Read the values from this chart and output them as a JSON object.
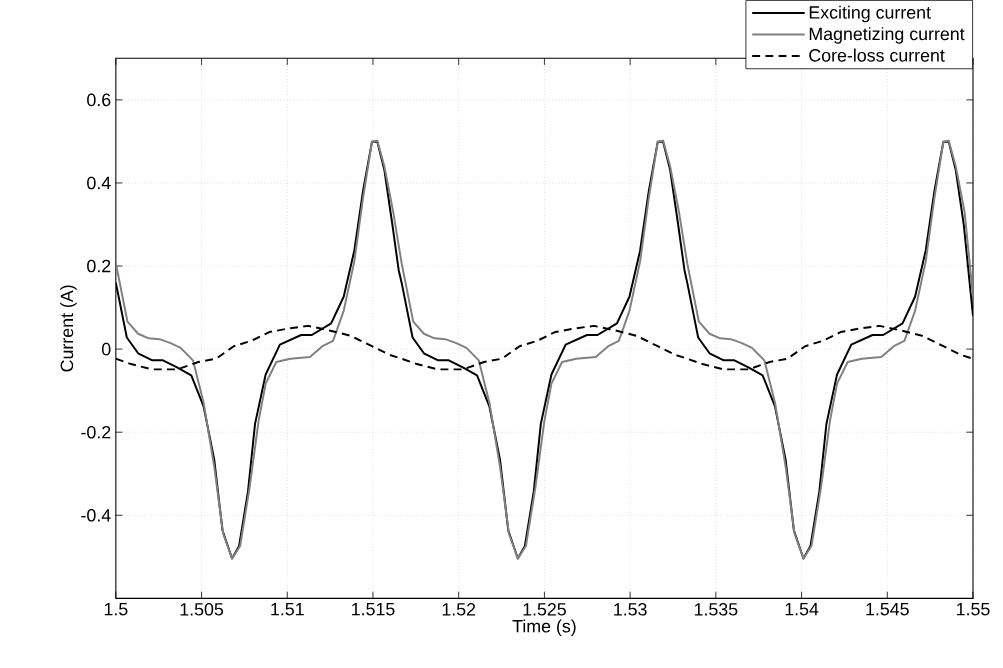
{
  "chart_data": {
    "type": "line",
    "xlabel": "Time (s)",
    "ylabel": "Current (A)",
    "xlim": [
      1.5,
      1.55
    ],
    "ylim": [
      -0.6,
      0.7
    ],
    "xticks": [
      1.5,
      1.505,
      1.51,
      1.515,
      1.52,
      1.525,
      1.53,
      1.535,
      1.54,
      1.545,
      1.55
    ],
    "yticks": [
      -0.4,
      -0.2,
      0,
      0.2,
      0.4,
      0.6
    ],
    "grid": true,
    "legend": "top right",
    "series": [
      {
        "name": "Exciting current",
        "color": "#000000",
        "line_style": "solid",
        "x": [
          1.5,
          1.50064,
          1.5013,
          1.50213,
          1.50275,
          1.50357,
          1.5044,
          1.50512,
          1.50574,
          1.50622,
          1.50678,
          1.50719,
          1.50771,
          1.50812,
          1.50874,
          1.50957,
          1.51081,
          1.51143,
          1.51256,
          1.51329,
          1.51391,
          1.51442,
          1.51494,
          1.51525,
          1.51566,
          1.51613,
          1.5165,
          1.51667,
          1.51731,
          1.51797,
          1.5188,
          1.51942,
          1.52024,
          1.52107,
          1.52179,
          1.52241,
          1.52289,
          1.52345,
          1.52386,
          1.52438,
          1.52479,
          1.52541,
          1.52624,
          1.52748,
          1.5281,
          1.52923,
          1.52996,
          1.53058,
          1.53109,
          1.53161,
          1.53192,
          1.53233,
          1.5328,
          1.53317,
          1.53333,
          1.53397,
          1.53463,
          1.53546,
          1.53608,
          1.5369,
          1.53773,
          1.53845,
          1.53907,
          1.53955,
          1.54011,
          1.54052,
          1.54104,
          1.54145,
          1.54207,
          1.5429,
          1.54414,
          1.54476,
          1.54589,
          1.54662,
          1.54724,
          1.54775,
          1.54827,
          1.54858,
          1.54899,
          1.54946,
          1.55
        ],
        "values": [
          0.16,
          0.028,
          -0.01,
          -0.027,
          -0.027,
          -0.044,
          -0.063,
          -0.138,
          -0.266,
          -0.436,
          -0.504,
          -0.474,
          -0.342,
          -0.18,
          -0.061,
          0.011,
          0.034,
          0.034,
          0.062,
          0.126,
          0.237,
          0.381,
          0.499,
          0.5,
          0.432,
          0.3,
          0.19,
          0.16,
          0.028,
          -0.01,
          -0.027,
          -0.027,
          -0.044,
          -0.063,
          -0.138,
          -0.266,
          -0.436,
          -0.504,
          -0.474,
          -0.342,
          -0.18,
          -0.061,
          0.011,
          0.034,
          0.034,
          0.062,
          0.126,
          0.237,
          0.381,
          0.499,
          0.5,
          0.432,
          0.3,
          0.19,
          0.16,
          0.028,
          -0.01,
          -0.027,
          -0.027,
          -0.044,
          -0.063,
          -0.138,
          -0.266,
          -0.436,
          -0.504,
          -0.474,
          -0.342,
          -0.18,
          -0.061,
          0.011,
          0.034,
          0.034,
          0.062,
          0.126,
          0.237,
          0.381,
          0.499,
          0.5,
          0.432,
          0.3,
          0.08
        ]
      },
      {
        "name": "Magnetizing current",
        "color": "#808080",
        "line_style": "solid",
        "x": [
          1.5,
          1.50068,
          1.5013,
          1.50192,
          1.50254,
          1.50316,
          1.50378,
          1.5045,
          1.50512,
          1.50574,
          1.50626,
          1.50678,
          1.50725,
          1.5078,
          1.50833,
          1.50874,
          1.50936,
          1.51019,
          1.51132,
          1.51205,
          1.51267,
          1.51329,
          1.51391,
          1.51442,
          1.51494,
          1.51525,
          1.51566,
          1.51618,
          1.51667,
          1.51735,
          1.51797,
          1.51859,
          1.51921,
          1.51983,
          1.52045,
          1.52117,
          1.52179,
          1.52241,
          1.52293,
          1.52345,
          1.52392,
          1.52447,
          1.525,
          1.52541,
          1.52603,
          1.52686,
          1.52799,
          1.52872,
          1.52934,
          1.52996,
          1.53058,
          1.53109,
          1.53161,
          1.53192,
          1.53233,
          1.53285,
          1.53333,
          1.53401,
          1.53463,
          1.53525,
          1.53587,
          1.53649,
          1.53711,
          1.53783,
          1.53845,
          1.53907,
          1.53959,
          1.54011,
          1.54058,
          1.54113,
          1.54166,
          1.54207,
          1.54269,
          1.54352,
          1.54465,
          1.54538,
          1.546,
          1.54662,
          1.54724,
          1.54775,
          1.54827,
          1.54858,
          1.54899,
          1.54951,
          1.55
        ],
        "values": [
          0.207,
          0.066,
          0.037,
          0.026,
          0.024,
          0.015,
          0.003,
          -0.027,
          -0.129,
          -0.283,
          -0.444,
          -0.504,
          -0.474,
          -0.334,
          -0.172,
          -0.083,
          -0.031,
          -0.023,
          -0.019,
          0.007,
          0.02,
          0.092,
          0.211,
          0.364,
          0.499,
          0.502,
          0.441,
          0.33,
          0.207,
          0.066,
          0.037,
          0.026,
          0.024,
          0.015,
          0.003,
          -0.027,
          -0.129,
          -0.283,
          -0.444,
          -0.504,
          -0.474,
          -0.334,
          -0.172,
          -0.083,
          -0.031,
          -0.023,
          -0.019,
          0.007,
          0.02,
          0.092,
          0.211,
          0.364,
          0.499,
          0.502,
          0.441,
          0.33,
          0.207,
          0.066,
          0.037,
          0.026,
          0.024,
          0.015,
          0.003,
          -0.027,
          -0.129,
          -0.283,
          -0.444,
          -0.504,
          -0.474,
          -0.334,
          -0.172,
          -0.083,
          -0.031,
          -0.023,
          -0.019,
          0.007,
          0.02,
          0.092,
          0.211,
          0.364,
          0.499,
          0.502,
          0.441,
          0.33,
          0.126
        ]
      },
      {
        "name": "Core-loss current",
        "color": "#000000",
        "line_style": "dashed",
        "x": [
          1.5,
          1.50089,
          1.50213,
          1.50357,
          1.50481,
          1.50585,
          1.50688,
          1.50791,
          1.50895,
          1.50998,
          1.51122,
          1.51246,
          1.5137,
          1.51494,
          1.51597,
          1.51667,
          1.51756,
          1.5188,
          1.52024,
          1.52148,
          1.52252,
          1.52355,
          1.52458,
          1.52562,
          1.52665,
          1.52789,
          1.52913,
          1.53037,
          1.53161,
          1.53264,
          1.53333,
          1.53422,
          1.53546,
          1.5369,
          1.53814,
          1.53918,
          1.54021,
          1.54124,
          1.54228,
          1.54331,
          1.54455,
          1.54579,
          1.54703,
          1.54827,
          1.5493,
          1.55
        ],
        "values": [
          -0.023,
          -0.036,
          -0.049,
          -0.049,
          -0.031,
          -0.023,
          0.007,
          0.02,
          0.041,
          0.049,
          0.056,
          0.045,
          0.032,
          0.007,
          -0.014,
          -0.023,
          -0.036,
          -0.049,
          -0.049,
          -0.031,
          -0.023,
          0.007,
          0.02,
          0.041,
          0.049,
          0.056,
          0.045,
          0.032,
          0.007,
          -0.014,
          -0.023,
          -0.036,
          -0.049,
          -0.049,
          -0.031,
          -0.023,
          0.007,
          0.02,
          0.041,
          0.049,
          0.056,
          0.045,
          0.032,
          0.007,
          -0.014,
          -0.023
        ]
      }
    ]
  }
}
